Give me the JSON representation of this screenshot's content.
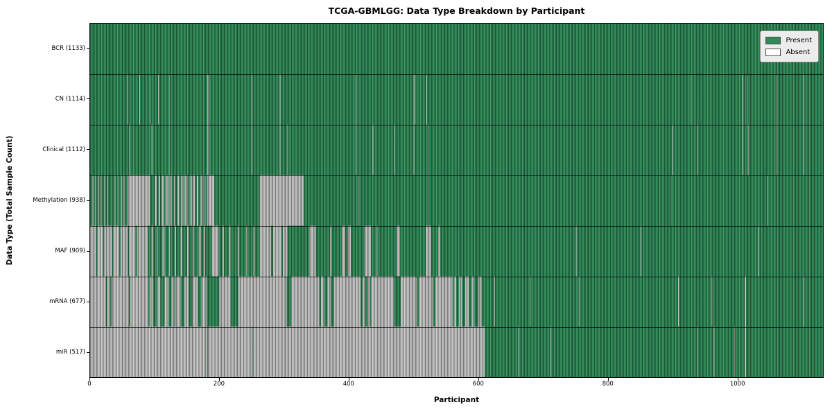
{
  "figure": {
    "title": "TCGA-GBMLGG: Data Type Breakdown by Participant",
    "xlabel": "Participant",
    "ylabel": "Data Type (Total Sample Count)"
  },
  "legend": {
    "items": [
      {
        "label": "Present",
        "color": "#2E8B57"
      },
      {
        "label": "Absent",
        "color": "#FFFFFF"
      }
    ]
  },
  "chart_data": {
    "type": "heatmap",
    "title": "TCGA-GBMLGG: Data Type Breakdown by Participant",
    "xlabel": "Participant",
    "ylabel": "Data Type (Total Sample Count)",
    "legend_entries": [
      "Present",
      "Absent"
    ],
    "legend_position": "upper right",
    "x_range": [
      0,
      1133
    ],
    "x_ticks": [
      0,
      200,
      400,
      600,
      800,
      1000
    ],
    "colors": {
      "present": "#2E8B57",
      "absent": "#c6c6c6",
      "row_divider": "#1a1a1a"
    },
    "rows": [
      {
        "name": "BCR",
        "count": 1133,
        "label": "BCR (1133)",
        "absent_ranges": []
      },
      {
        "name": "CN",
        "count": 1114,
        "label": "CN (1114)",
        "absent_ranges": [
          [
            58,
            59
          ],
          [
            76,
            77
          ],
          [
            93,
            94
          ],
          [
            105,
            106
          ],
          [
            122,
            123
          ],
          [
            181,
            184
          ],
          [
            250,
            251
          ],
          [
            293,
            294
          ],
          [
            410,
            411
          ],
          [
            500,
            501
          ],
          [
            502,
            503
          ],
          [
            520,
            521
          ],
          [
            928,
            929
          ],
          [
            1008,
            1009
          ],
          [
            1016,
            1017
          ],
          [
            1060,
            1061
          ],
          [
            1103,
            1104
          ]
        ]
      },
      {
        "name": "Clinical",
        "count": 1112,
        "label": "Clinical (1112)",
        "absent_ranges": [
          [
            60,
            61
          ],
          [
            95,
            96
          ],
          [
            122,
            123
          ],
          [
            181,
            184
          ],
          [
            250,
            251
          ],
          [
            293,
            294
          ],
          [
            305,
            306
          ],
          [
            410,
            411
          ],
          [
            437,
            438
          ],
          [
            470,
            471
          ],
          [
            500,
            501
          ],
          [
            522,
            523
          ],
          [
            900,
            901
          ],
          [
            938,
            939
          ],
          [
            1008,
            1009
          ],
          [
            1016,
            1018
          ],
          [
            1060,
            1061
          ],
          [
            1103,
            1104
          ]
        ]
      },
      {
        "name": "Methylation",
        "count": 938,
        "label": "Methylation (938)",
        "absent_ranges": [
          [
            4,
            6
          ],
          [
            8,
            9
          ],
          [
            12,
            13
          ],
          [
            16,
            17
          ],
          [
            22,
            23
          ],
          [
            27,
            28
          ],
          [
            33,
            34
          ],
          [
            38,
            39
          ],
          [
            44,
            45
          ],
          [
            48,
            50
          ],
          [
            52,
            53
          ],
          [
            55,
            56
          ],
          [
            58,
            92
          ],
          [
            100,
            103
          ],
          [
            106,
            108
          ],
          [
            111,
            114
          ],
          [
            117,
            121
          ],
          [
            123,
            126
          ],
          [
            129,
            131
          ],
          [
            135,
            138
          ],
          [
            141,
            143
          ],
          [
            144,
            146
          ],
          [
            147,
            150
          ],
          [
            153,
            155
          ],
          [
            156,
            158
          ],
          [
            159,
            162
          ],
          [
            165,
            167
          ],
          [
            171,
            174
          ],
          [
            177,
            179
          ],
          [
            181,
            192
          ],
          [
            262,
            330
          ],
          [
            414,
            415
          ],
          [
            522,
            523
          ],
          [
            898,
            899
          ],
          [
            1046,
            1047
          ]
        ]
      },
      {
        "name": "MAF",
        "count": 909,
        "label": "MAF (909)",
        "absent_ranges": [
          [
            0,
            9
          ],
          [
            11,
            20
          ],
          [
            22,
            34
          ],
          [
            36,
            45
          ],
          [
            47,
            58
          ],
          [
            60,
            70
          ],
          [
            73,
            89
          ],
          [
            95,
            97
          ],
          [
            103,
            105
          ],
          [
            112,
            115
          ],
          [
            122,
            124
          ],
          [
            131,
            133
          ],
          [
            140,
            142
          ],
          [
            150,
            152
          ],
          [
            158,
            160
          ],
          [
            168,
            171
          ],
          [
            176,
            178
          ],
          [
            188,
            199
          ],
          [
            205,
            207
          ],
          [
            215,
            217
          ],
          [
            228,
            230
          ],
          [
            241,
            243
          ],
          [
            252,
            254
          ],
          [
            262,
            280
          ],
          [
            283,
            296
          ],
          [
            298,
            305
          ],
          [
            339,
            349
          ],
          [
            371,
            373
          ],
          [
            389,
            394
          ],
          [
            399,
            403
          ],
          [
            424,
            434
          ],
          [
            443,
            445
          ],
          [
            474,
            479
          ],
          [
            519,
            527
          ],
          [
            538,
            541
          ],
          [
            751,
            752
          ],
          [
            851,
            852
          ],
          [
            1033,
            1034
          ]
        ]
      },
      {
        "name": "mRNA",
        "count": 677,
        "label": "mRNA (677)",
        "absent_ranges": [
          [
            0,
            24
          ],
          [
            26,
            31
          ],
          [
            33,
            60
          ],
          [
            62,
            90
          ],
          [
            92,
            97
          ],
          [
            103,
            109
          ],
          [
            115,
            121
          ],
          [
            126,
            130
          ],
          [
            132,
            140
          ],
          [
            146,
            152
          ],
          [
            158,
            166
          ],
          [
            172,
            180
          ],
          [
            200,
            217
          ],
          [
            229,
            304
          ],
          [
            311,
            354
          ],
          [
            357,
            362
          ],
          [
            367,
            372
          ],
          [
            377,
            418
          ],
          [
            421,
            425
          ],
          [
            429,
            432
          ],
          [
            434,
            470
          ],
          [
            480,
            505
          ],
          [
            508,
            530
          ],
          [
            534,
            560
          ],
          [
            562,
            566
          ],
          [
            570,
            575
          ],
          [
            580,
            585
          ],
          [
            590,
            594
          ],
          [
            600,
            605
          ],
          [
            625,
            626
          ],
          [
            680,
            681
          ],
          [
            755,
            756
          ],
          [
            909,
            910
          ],
          [
            961,
            962
          ],
          [
            1012,
            1014
          ],
          [
            1103,
            1104
          ]
        ]
      },
      {
        "name": "miR",
        "count": 517,
        "label": "miR (517)",
        "absent_ranges": [
          [
            0,
            181
          ],
          [
            182,
            250
          ],
          [
            251,
            610
          ],
          [
            662,
            663
          ],
          [
            712,
            713
          ],
          [
            938,
            939
          ],
          [
            964,
            965
          ],
          [
            996,
            997
          ],
          [
            1012,
            1014
          ]
        ]
      }
    ]
  }
}
